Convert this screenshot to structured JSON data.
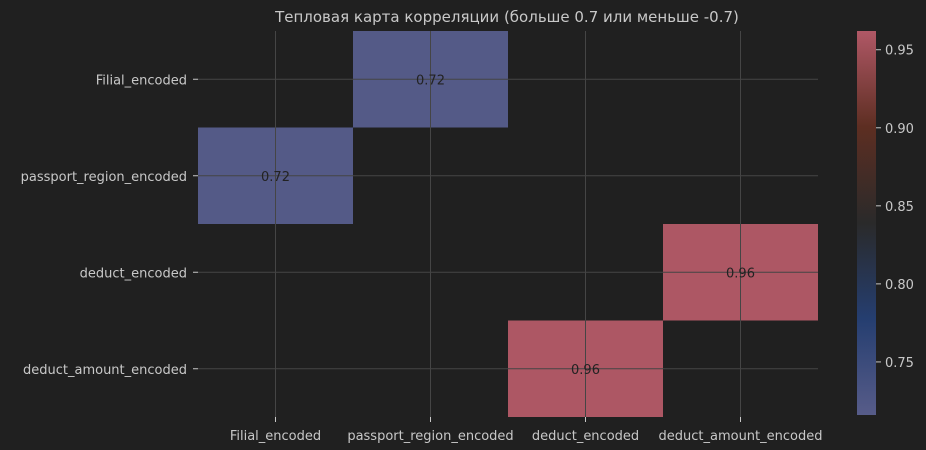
{
  "chart_data": {
    "type": "heatmap",
    "title": "Тепловая карта корреляции (больше 0.7 или меньше -0.7)",
    "xlabel": "",
    "ylabel": "",
    "x_categories": [
      "Filial_encoded",
      "passport_region_encoded",
      "deduct_encoded",
      "deduct_amount_encoded"
    ],
    "y_categories": [
      "Filial_encoded",
      "passport_region_encoded",
      "deduct_encoded",
      "deduct_amount_encoded"
    ],
    "cells": [
      {
        "row": "Filial_encoded",
        "col": "passport_region_encoded",
        "value": 0.72,
        "label": "0.72"
      },
      {
        "row": "passport_region_encoded",
        "col": "Filial_encoded",
        "value": 0.72,
        "label": "0.72"
      },
      {
        "row": "deduct_encoded",
        "col": "deduct_amount_encoded",
        "value": 0.96,
        "label": "0.96"
      },
      {
        "row": "deduct_amount_encoded",
        "col": "deduct_encoded",
        "value": 0.96,
        "label": "0.96"
      }
    ],
    "masked": "cells with |value| <= 0.7 are not shown",
    "colorbar": {
      "range": [
        0.716,
        0.962
      ],
      "ticks": [
        0.75,
        0.8,
        0.85,
        0.9,
        0.95
      ],
      "tick_labels": [
        "0.75",
        "0.80",
        "0.85",
        "0.90",
        "0.95"
      ],
      "colormap_stops": [
        "#575c89",
        "#253e70",
        "#2a2a2a",
        "#5d2e22",
        "#b05866"
      ]
    },
    "grid": true,
    "colors": {
      "background": "#202020",
      "grid": "#454545",
      "text": "#c8c8c8",
      "annotation_text": "#222222"
    }
  }
}
